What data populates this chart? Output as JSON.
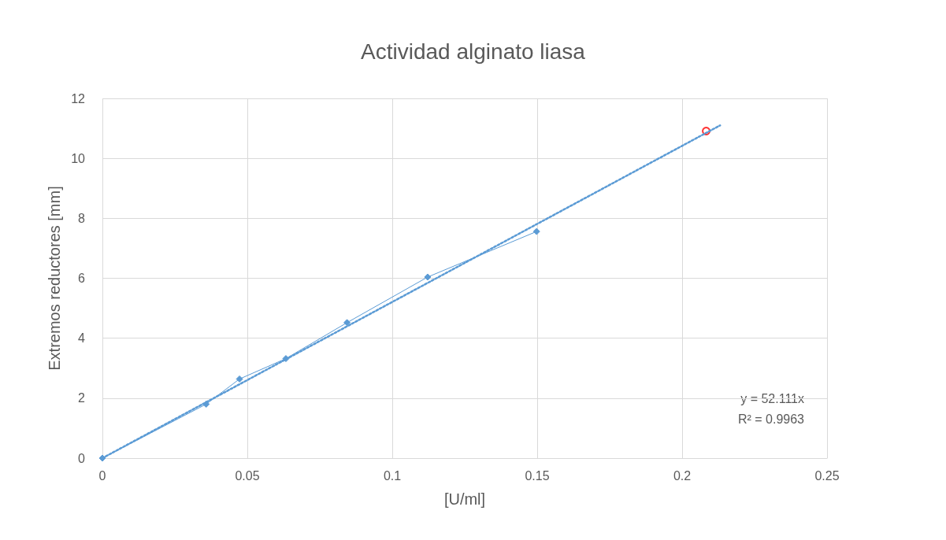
{
  "chart_data": {
    "type": "line",
    "title": "Actividad alginato liasa",
    "xlabel": "[U/ml]",
    "ylabel": "Extremos reductores [mm]",
    "xlim": [
      0,
      0.25
    ],
    "xticks": [
      0,
      0.05,
      0.1,
      0.15,
      0.2,
      0.25
    ],
    "ylim": [
      0,
      12
    ],
    "yticks": [
      0,
      2,
      4,
      6,
      8,
      10,
      12
    ],
    "grid": true,
    "series": [
      {
        "color": "#5b9bd5",
        "marker": "diamond",
        "line_style": "solid",
        "x": [
          0,
          0.0358,
          0.0473,
          0.0633,
          0.0844,
          0.1122,
          0.1498
        ],
        "values": [
          0,
          1.8,
          2.64,
          3.32,
          4.52,
          6.04,
          7.56
        ]
      },
      {
        "type": "scatter",
        "color": "#ff0000",
        "marker": "circle",
        "x": [
          0.2083
        ],
        "values": [
          10.91
        ]
      },
      {
        "type": "line",
        "color": "#5b9bd5",
        "marker": "none",
        "line_style": "dotted",
        "x": [
          0,
          0.2131
        ],
        "values": [
          0,
          11.1
        ]
      }
    ],
    "annotations": [
      "y = 52.111x",
      "R² = 0.9963"
    ]
  }
}
